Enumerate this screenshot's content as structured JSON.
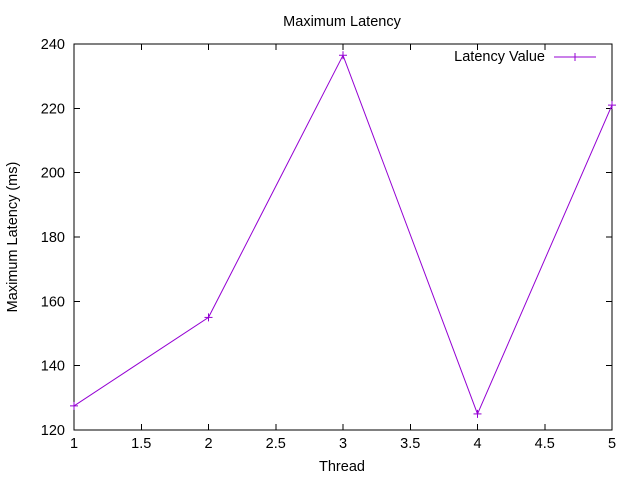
{
  "chart_data": {
    "type": "line",
    "title": "Maximum Latency",
    "xlabel": "Thread",
    "ylabel": "Maximum Latency (ms)",
    "xlim": [
      1,
      5
    ],
    "ylim": [
      120,
      240
    ],
    "x_ticks": [
      1,
      1.5,
      2,
      2.5,
      3,
      3.5,
      4,
      4.5,
      5
    ],
    "x_tick_labels": [
      "1",
      "1.5",
      "2",
      "2.5",
      "3",
      "3.5",
      "4",
      "4.5",
      "5"
    ],
    "y_ticks": [
      120,
      140,
      160,
      180,
      200,
      220,
      240
    ],
    "y_tick_labels": [
      "120",
      "140",
      "160",
      "180",
      "200",
      "220",
      "240"
    ],
    "grid": false,
    "legend_position": "top-right",
    "series": [
      {
        "name": "Latency Value",
        "color": "#9400d3",
        "marker": "plus",
        "x": [
          1,
          2,
          3,
          4,
          5
        ],
        "y": [
          127.5,
          155,
          236.5,
          125,
          221
        ]
      }
    ]
  }
}
